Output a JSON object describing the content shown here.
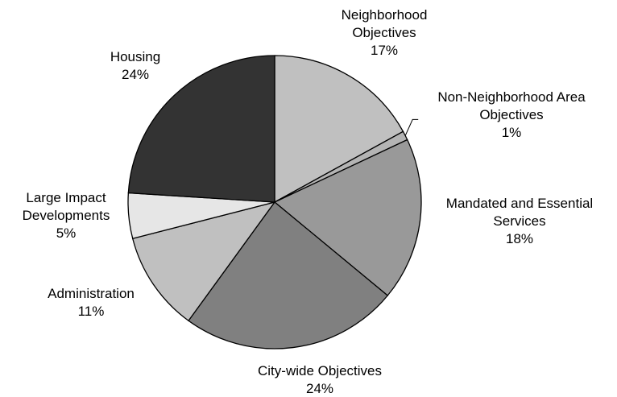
{
  "chart_data": {
    "type": "pie",
    "start_angle_deg": 0,
    "direction": "clockwise",
    "slices": [
      {
        "lines": [
          "Neighborhood",
          "Objectives"
        ],
        "value_label": "17%",
        "value": 17,
        "color": "#c0c0c0"
      },
      {
        "lines": [
          "Non-Neighborhood Area",
          "Objectives"
        ],
        "value_label": "1%",
        "value": 1,
        "color": "#b4b4b4"
      },
      {
        "lines": [
          "Mandated and Essential",
          "Services"
        ],
        "value_label": "18%",
        "value": 18,
        "color": "#999999"
      },
      {
        "lines": [
          "City-wide Objectives"
        ],
        "value_label": "24%",
        "value": 24,
        "color": "#808080"
      },
      {
        "lines": [
          "Administration"
        ],
        "value_label": "11%",
        "value": 11,
        "color": "#c0c0c0"
      },
      {
        "lines": [
          "Large Impact",
          "Developments"
        ],
        "value_label": "5%",
        "value": 5,
        "color": "#e6e6e6"
      },
      {
        "lines": [
          "Housing"
        ],
        "value_label": "24%",
        "value": 24,
        "color": "#333333"
      }
    ]
  }
}
